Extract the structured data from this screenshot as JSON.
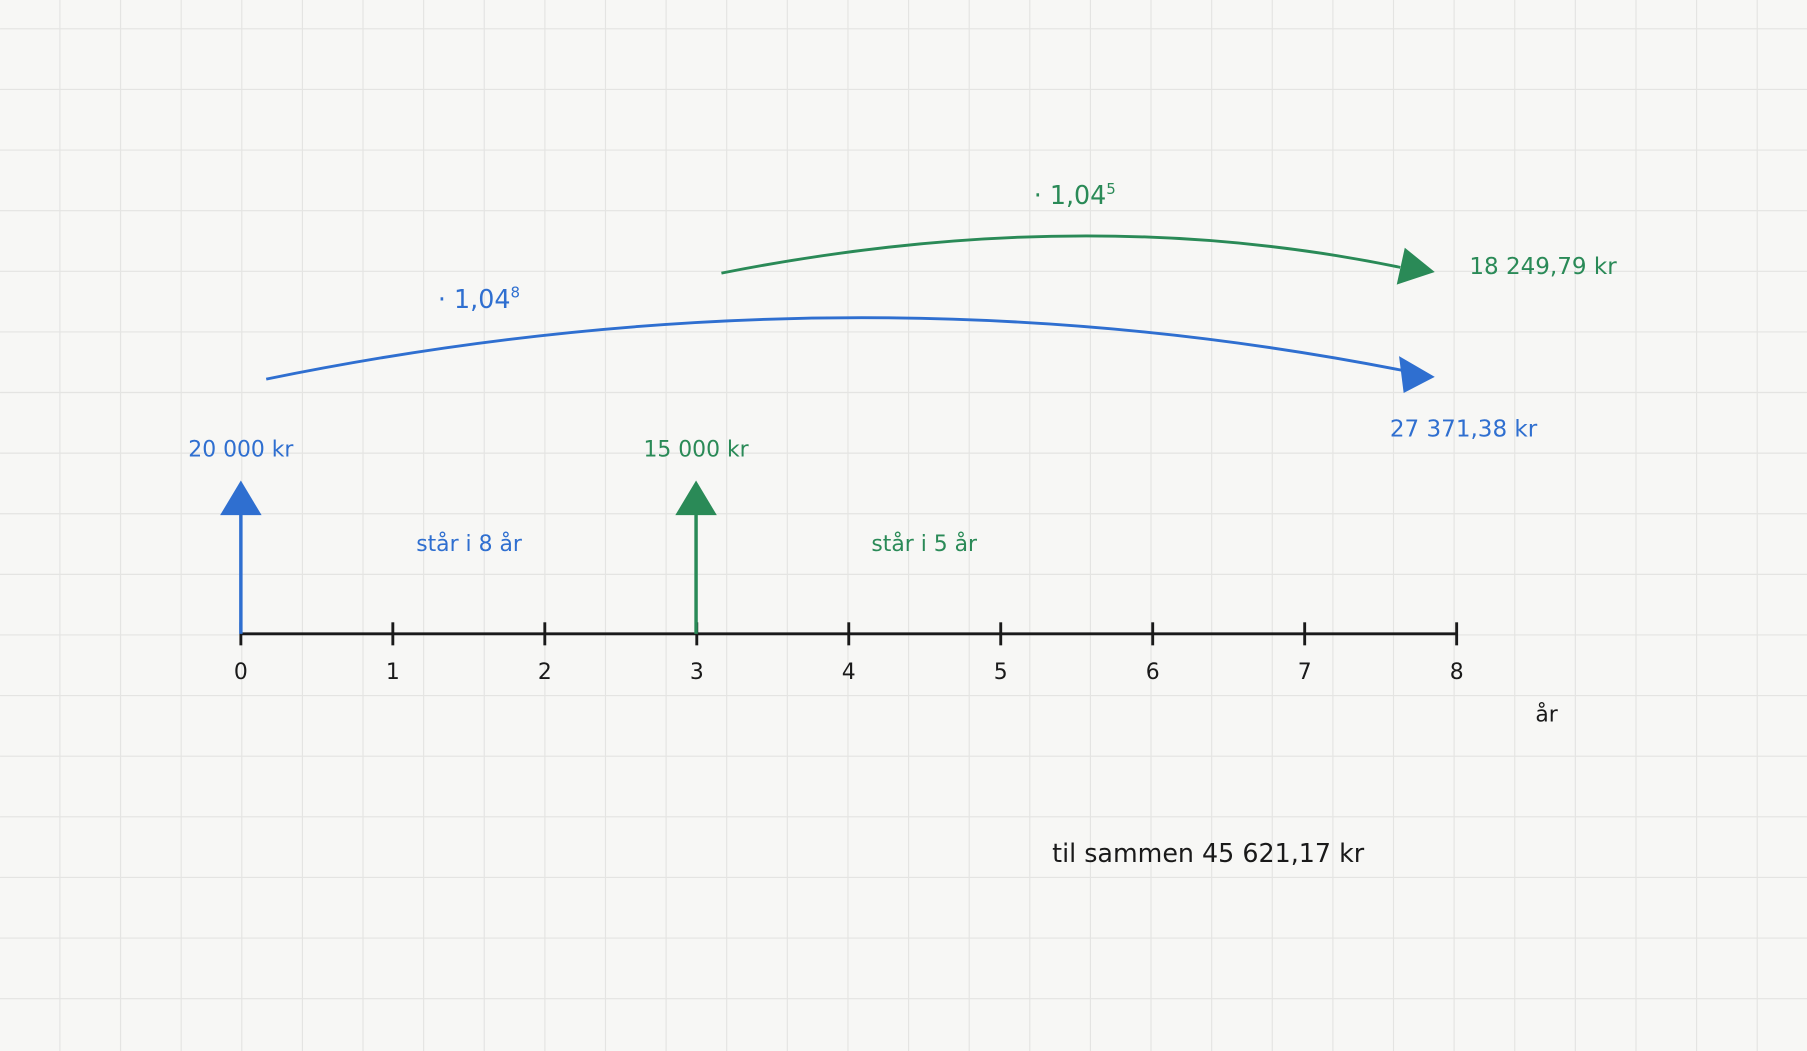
{
  "axis": {
    "ticks": [
      "0",
      "1",
      "2",
      "3",
      "4",
      "5",
      "6",
      "7",
      "8"
    ],
    "label": "år"
  },
  "deposits": [
    {
      "amount": "20 000 kr",
      "duration": "står i 8 år",
      "factor": "· 1,04",
      "exponent": "8",
      "result": "27 371,38 kr"
    },
    {
      "amount": "15 000 kr",
      "duration": "står i 5 år",
      "factor": "· 1,04",
      "exponent": "5",
      "result": "18 249,79 kr"
    }
  ],
  "total": "til sammen 45 621,17 kr"
}
